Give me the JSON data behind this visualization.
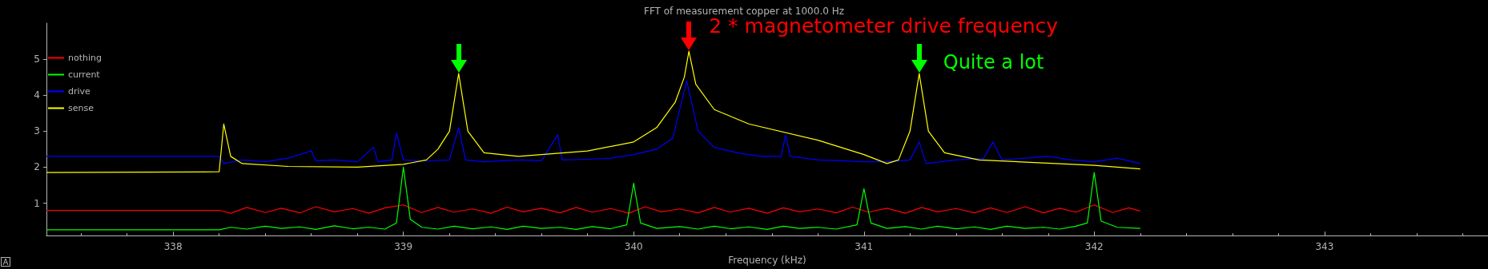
{
  "chart_data": {
    "type": "line",
    "title": "FFT of measurement copper at 1000.0 Hz",
    "xlabel": "Frequency (kHz)",
    "xlim": [
      337.45,
      343.71
    ],
    "xticks": [
      338,
      339,
      340,
      341,
      342,
      343
    ],
    "ylim": [
      0.1,
      6.0
    ],
    "yticks": [
      1,
      2,
      3,
      4,
      5
    ],
    "grid": false,
    "legend": "top left",
    "marker": "none",
    "line_style": "solid",
    "annotations": [
      {
        "text": "2 * magnetometer drive frequency",
        "x": 340.24,
        "y": 5.22
      },
      {
        "text": "Quite a lot",
        "x": 341.24,
        "y": 4.6
      }
    ],
    "series": [
      {
        "name": "nothing",
        "color": "#ff0000",
        "x": [
          337.45,
          338.2,
          338.25,
          338.32,
          338.4,
          338.47,
          338.55,
          338.62,
          338.7,
          338.78,
          338.85,
          338.92,
          339.0,
          339.08,
          339.15,
          339.22,
          339.3,
          339.38,
          339.45,
          339.52,
          339.6,
          339.68,
          339.75,
          339.82,
          339.9,
          339.98,
          340.05,
          340.12,
          340.2,
          340.28,
          340.35,
          340.42,
          340.5,
          340.58,
          340.65,
          340.72,
          340.8,
          340.88,
          340.95,
          341.02,
          341.1,
          341.18,
          341.25,
          341.32,
          341.4,
          341.48,
          341.55,
          341.62,
          341.7,
          341.78,
          341.85,
          341.92,
          342.0,
          342.08,
          342.15,
          342.2
        ],
        "values": [
          0.8,
          0.8,
          0.72,
          0.88,
          0.74,
          0.86,
          0.73,
          0.9,
          0.76,
          0.85,
          0.72,
          0.87,
          0.95,
          0.74,
          0.88,
          0.75,
          0.84,
          0.72,
          0.89,
          0.76,
          0.86,
          0.73,
          0.88,
          0.75,
          0.85,
          0.72,
          0.9,
          0.76,
          0.84,
          0.73,
          0.88,
          0.75,
          0.86,
          0.72,
          0.87,
          0.76,
          0.84,
          0.73,
          0.89,
          0.75,
          0.86,
          0.72,
          0.88,
          0.76,
          0.85,
          0.73,
          0.87,
          0.74,
          0.9,
          0.73,
          0.86,
          0.75,
          0.95,
          0.74,
          0.87,
          0.78
        ]
      },
      {
        "name": "current",
        "color": "#00ff00",
        "x": [
          337.45,
          338.2,
          338.25,
          338.32,
          338.4,
          338.47,
          338.55,
          338.62,
          338.7,
          338.78,
          338.85,
          338.92,
          338.97,
          339.0,
          339.03,
          339.08,
          339.15,
          339.22,
          339.3,
          339.38,
          339.45,
          339.52,
          339.6,
          339.68,
          339.75,
          339.82,
          339.9,
          339.97,
          340.0,
          340.03,
          340.1,
          340.2,
          340.28,
          340.35,
          340.42,
          340.5,
          340.58,
          340.65,
          340.72,
          340.8,
          340.88,
          340.97,
          341.0,
          341.03,
          341.1,
          341.18,
          341.25,
          341.32,
          341.4,
          341.48,
          341.55,
          341.62,
          341.7,
          341.78,
          341.85,
          341.92,
          341.97,
          342.0,
          342.03,
          342.1,
          342.2
        ],
        "values": [
          0.26,
          0.26,
          0.33,
          0.28,
          0.36,
          0.3,
          0.34,
          0.27,
          0.37,
          0.29,
          0.33,
          0.28,
          0.45,
          2.0,
          0.55,
          0.33,
          0.28,
          0.36,
          0.29,
          0.34,
          0.27,
          0.36,
          0.3,
          0.33,
          0.27,
          0.35,
          0.29,
          0.4,
          1.55,
          0.45,
          0.3,
          0.35,
          0.28,
          0.36,
          0.29,
          0.34,
          0.27,
          0.36,
          0.3,
          0.33,
          0.28,
          0.4,
          1.4,
          0.45,
          0.3,
          0.35,
          0.28,
          0.36,
          0.29,
          0.34,
          0.27,
          0.36,
          0.3,
          0.33,
          0.28,
          0.36,
          0.45,
          1.85,
          0.5,
          0.33,
          0.3
        ]
      },
      {
        "name": "drive",
        "color": "#0000ff",
        "x": [
          337.45,
          338.2,
          338.22,
          338.3,
          338.4,
          338.5,
          338.6,
          338.62,
          338.7,
          338.8,
          338.87,
          338.89,
          338.95,
          338.97,
          339.0,
          339.1,
          339.2,
          339.24,
          339.27,
          339.35,
          339.5,
          339.6,
          339.67,
          339.69,
          339.8,
          339.9,
          340.0,
          340.1,
          340.17,
          340.23,
          340.28,
          340.35,
          340.45,
          340.55,
          340.64,
          340.66,
          340.68,
          340.8,
          340.9,
          341.0,
          341.1,
          341.2,
          341.24,
          341.27,
          341.4,
          341.52,
          341.56,
          341.6,
          341.7,
          341.8,
          341.9,
          342.0,
          342.1,
          342.2
        ],
        "values": [
          2.3,
          2.3,
          2.1,
          2.2,
          2.15,
          2.25,
          2.45,
          2.18,
          2.2,
          2.15,
          2.55,
          2.15,
          2.2,
          2.95,
          2.2,
          2.17,
          2.2,
          3.1,
          2.2,
          2.15,
          2.2,
          2.18,
          2.9,
          2.2,
          2.22,
          2.25,
          2.35,
          2.5,
          2.8,
          4.4,
          3.0,
          2.55,
          2.4,
          2.3,
          2.3,
          2.9,
          2.3,
          2.2,
          2.18,
          2.15,
          2.15,
          2.2,
          2.7,
          2.1,
          2.2,
          2.25,
          2.7,
          2.2,
          2.25,
          2.3,
          2.2,
          2.15,
          2.25,
          2.1
        ]
      },
      {
        "name": "sense",
        "color": "#ffff00",
        "x": [
          337.45,
          338.2,
          338.22,
          338.25,
          338.3,
          338.5,
          338.8,
          339.0,
          339.1,
          339.15,
          339.2,
          339.24,
          339.28,
          339.35,
          339.5,
          339.8,
          340.0,
          340.1,
          340.18,
          340.22,
          340.24,
          340.27,
          340.35,
          340.5,
          340.8,
          341.0,
          341.1,
          341.15,
          341.2,
          341.24,
          341.28,
          341.35,
          341.5,
          342.0,
          342.2
        ],
        "values": [
          1.85,
          1.87,
          3.2,
          2.3,
          2.1,
          2.02,
          2.0,
          2.08,
          2.2,
          2.5,
          3.0,
          4.6,
          3.0,
          2.4,
          2.3,
          2.45,
          2.7,
          3.1,
          3.8,
          4.5,
          5.22,
          4.3,
          3.6,
          3.2,
          2.75,
          2.35,
          2.1,
          2.2,
          3.0,
          4.6,
          3.0,
          2.4,
          2.2,
          2.05,
          1.95
        ]
      }
    ]
  }
}
